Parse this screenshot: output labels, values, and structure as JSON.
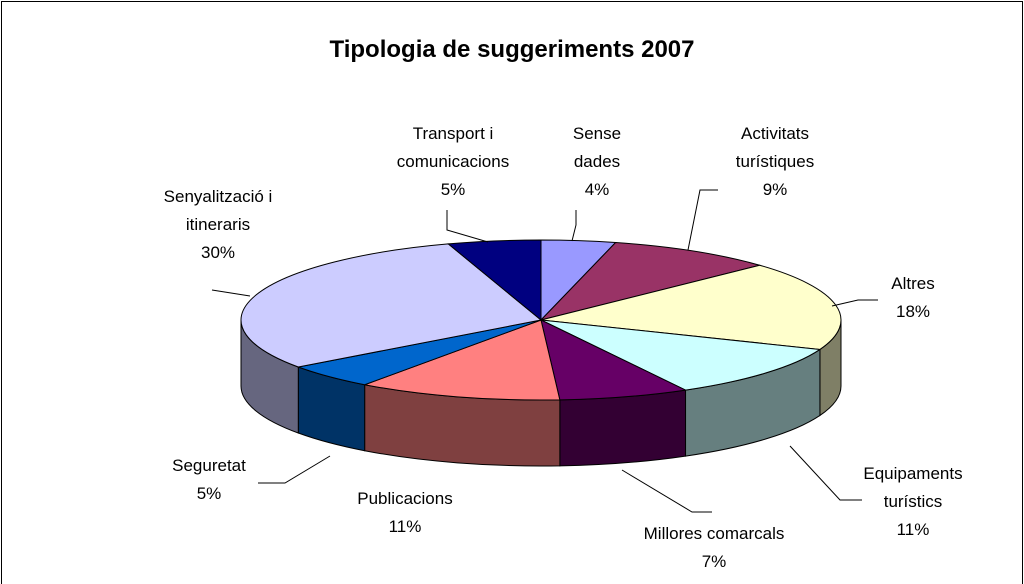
{
  "chart_data": {
    "type": "pie",
    "title": "Tipologia de suggeriments 2007",
    "categories": [
      "Sense dades",
      "Activitats turístiques",
      "Altres",
      "Equipaments turístics",
      "Millores comarcals",
      "Publicacions",
      "Seguretat",
      "Senyalització i itineraris",
      "Transport i comunicacions"
    ],
    "values": [
      4,
      9,
      18,
      11,
      7,
      11,
      5,
      30,
      5
    ],
    "value_labels": [
      "4%",
      "9%",
      "18%",
      "11%",
      "7%",
      "11%",
      "5%",
      "30%",
      "5%"
    ],
    "colors": [
      "#9999ff",
      "#993366",
      "#ffffcc",
      "#ccffff",
      "#660066",
      "#ff8080",
      "#0066cc",
      "#ccccff",
      "#000080"
    ]
  }
}
